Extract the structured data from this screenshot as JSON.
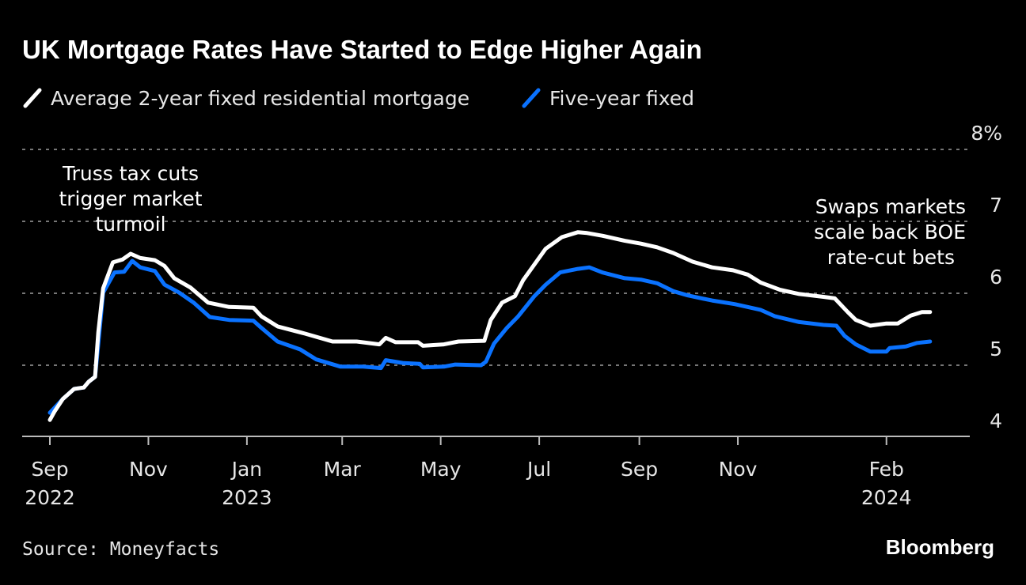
{
  "chart_data": {
    "type": "line",
    "title": "UK Mortgage Rates Have Started to Edge Higher Again",
    "source": "Source: Moneyfacts",
    "brand": "Bloomberg",
    "x_origin_date": "2022-09-01",
    "xlim_days": [
      0,
      545
    ],
    "ylim": [
      4,
      8
    ],
    "yticks": [
      {
        "value": 4,
        "label": "4"
      },
      {
        "value": 5,
        "label": "5"
      },
      {
        "value": 6,
        "label": "6"
      },
      {
        "value": 7,
        "label": "7"
      },
      {
        "value": 8,
        "label": "8%"
      }
    ],
    "xticks": [
      {
        "day": 0,
        "line1": "Sep",
        "line2": "2022"
      },
      {
        "day": 61,
        "line1": "Nov",
        "line2": ""
      },
      {
        "day": 122,
        "line1": "Jan",
        "line2": "2023"
      },
      {
        "day": 181,
        "line1": "Mar",
        "line2": ""
      },
      {
        "day": 242,
        "line1": "May",
        "line2": ""
      },
      {
        "day": 303,
        "line1": "Jul",
        "line2": ""
      },
      {
        "day": 365,
        "line1": "Sep",
        "line2": ""
      },
      {
        "day": 426,
        "line1": "Nov",
        "line2": ""
      },
      {
        "day": 518,
        "line1": "Feb",
        "line2": "2024"
      }
    ],
    "grid": true,
    "legend_placement": "top-left",
    "series": [
      {
        "name": "Average 2-year fixed residential mortgage",
        "color": "#ffffff",
        "day_offsets": [
          0,
          3,
          8,
          15,
          21,
          24,
          28,
          30,
          33,
          39,
          45,
          50,
          56,
          65,
          71,
          77,
          87,
          98,
          111,
          126,
          131,
          141,
          158,
          175,
          190,
          204,
          208,
          214,
          228,
          231,
          244,
          253,
          269,
          273,
          280,
          288,
          293,
          300,
          307,
          317,
          327,
          332,
          342,
          356,
          366,
          376,
          386,
          398,
          410,
          423,
          432,
          440,
          452,
          464,
          479,
          486,
          494,
          499,
          508,
          518,
          525,
          533,
          540,
          545
        ],
        "values": [
          4.24,
          4.36,
          4.53,
          4.67,
          4.69,
          4.77,
          4.84,
          5.46,
          6.07,
          6.43,
          6.47,
          6.55,
          6.49,
          6.46,
          6.38,
          6.21,
          6.08,
          5.87,
          5.81,
          5.8,
          5.68,
          5.54,
          5.44,
          5.33,
          5.33,
          5.29,
          5.38,
          5.32,
          5.32,
          5.27,
          5.29,
          5.33,
          5.34,
          5.63,
          5.87,
          5.96,
          6.18,
          6.4,
          6.62,
          6.78,
          6.85,
          6.84,
          6.8,
          6.73,
          6.69,
          6.64,
          6.56,
          6.44,
          6.36,
          6.32,
          6.26,
          6.15,
          6.05,
          5.99,
          5.95,
          5.93,
          5.74,
          5.63,
          5.55,
          5.58,
          5.58,
          5.69,
          5.74,
          5.74
        ]
      },
      {
        "name": "Five-year fixed",
        "color": "#0a72ff",
        "day_offsets": [
          0,
          8,
          15,
          21,
          24,
          28,
          30,
          33,
          40,
          46,
          51,
          56,
          65,
          71,
          80,
          89,
          99,
          111,
          126,
          131,
          141,
          155,
          165,
          180,
          194,
          205,
          208,
          219,
          229,
          231,
          244,
          251,
          267,
          270,
          275,
          283,
          290,
          300,
          307,
          316,
          327,
          334,
          342,
          356,
          366,
          376,
          386,
          395,
          410,
          424,
          440,
          449,
          464,
          479,
          487,
          492,
          499,
          508,
          518,
          520,
          530,
          537,
          545
        ],
        "values": [
          4.34,
          4.53,
          4.67,
          4.69,
          4.77,
          4.84,
          5.3,
          6.01,
          6.29,
          6.3,
          6.45,
          6.36,
          6.31,
          6.12,
          6.01,
          5.87,
          5.67,
          5.63,
          5.62,
          5.52,
          5.33,
          5.22,
          5.08,
          4.98,
          4.98,
          4.96,
          5.07,
          5.03,
          5.02,
          4.97,
          4.98,
          5.01,
          5.0,
          5.05,
          5.3,
          5.52,
          5.68,
          5.96,
          6.12,
          6.29,
          6.34,
          6.36,
          6.29,
          6.21,
          6.19,
          6.14,
          6.03,
          5.97,
          5.9,
          5.85,
          5.77,
          5.68,
          5.6,
          5.56,
          5.55,
          5.41,
          5.29,
          5.19,
          5.19,
          5.24,
          5.26,
          5.31,
          5.33
        ]
      }
    ],
    "annotations": [
      {
        "lines": [
          "Truss tax cuts",
          "trigger market",
          "turmoil"
        ]
      },
      {
        "lines": [
          "Swaps markets",
          "scale back BOE",
          "rate-cut bets"
        ]
      }
    ]
  }
}
